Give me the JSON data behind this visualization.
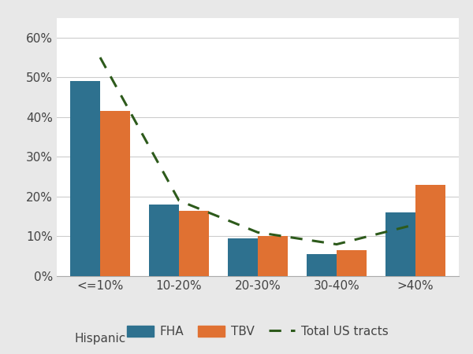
{
  "categories": [
    "<=10%",
    "10-20%",
    "20-30%",
    "30-40%",
    ">40%"
  ],
  "xlabel_extra": "Hispanic",
  "fha_values": [
    49,
    18,
    9.5,
    5.5,
    16
  ],
  "tbv_values": [
    41.5,
    16.5,
    10,
    6.5,
    23
  ],
  "line_values": [
    55,
    19,
    11,
    8,
    13
  ],
  "fha_color": "#2e718f",
  "tbv_color": "#e07132",
  "line_color": "#2d5a1b",
  "bg_color": "#ffffff",
  "fig_bg_color": "#e8e8e8",
  "ylim": [
    0,
    65
  ],
  "yticks": [
    0,
    10,
    20,
    30,
    40,
    50,
    60
  ],
  "ytick_labels": [
    "0%",
    "10%",
    "20%",
    "30%",
    "40%",
    "50%",
    "60%"
  ],
  "legend_fha": "FHA",
  "legend_tbv": "TBV",
  "legend_line": "Total US tracts",
  "bar_width": 0.38,
  "grid_color": "#cccccc",
  "tick_fontsize": 11,
  "legend_fontsize": 11
}
